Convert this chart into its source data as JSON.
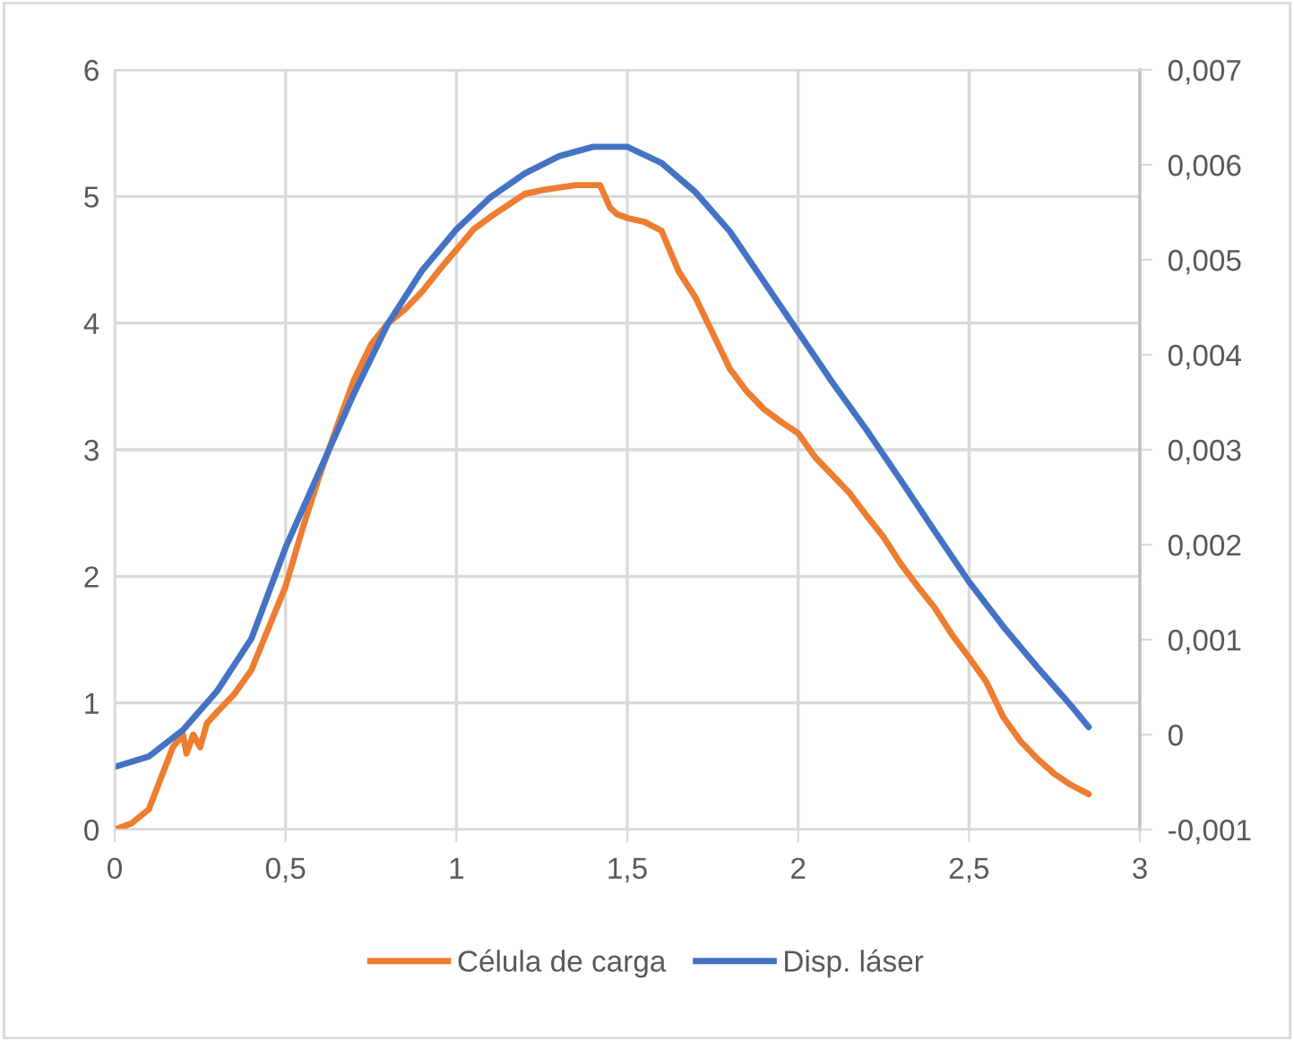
{
  "chart_data": {
    "type": "line",
    "xlim": [
      0,
      3
    ],
    "xticks": [
      {
        "value": 0,
        "label": "0"
      },
      {
        "value": 0.5,
        "label": "0,5"
      },
      {
        "value": 1,
        "label": "1"
      },
      {
        "value": 1.5,
        "label": "1,5"
      },
      {
        "value": 2,
        "label": "2"
      },
      {
        "value": 2.5,
        "label": "2,5"
      },
      {
        "value": 3,
        "label": "3"
      }
    ],
    "ylim": [
      0,
      6
    ],
    "yticks": [
      0,
      1,
      2,
      3,
      4,
      5,
      6
    ],
    "y2lim": [
      -0.001,
      0.007
    ],
    "y2ticks": [
      {
        "value": -0.001,
        "label": "-0,001"
      },
      {
        "value": 0,
        "label": "0"
      },
      {
        "value": 0.001,
        "label": "0,001"
      },
      {
        "value": 0.002,
        "label": "0,002"
      },
      {
        "value": 0.003,
        "label": "0,003"
      },
      {
        "value": 0.004,
        "label": "0,004"
      },
      {
        "value": 0.005,
        "label": "0,005"
      },
      {
        "value": 0.006,
        "label": "0,006"
      },
      {
        "value": 0.007,
        "label": "0,007"
      }
    ],
    "grid": true,
    "legend": "bottom",
    "marker": "none",
    "line_style": "solid",
    "series": [
      {
        "name": "Célula de carga",
        "color": "#ed7d31",
        "x": [
          0,
          0.05,
          0.1,
          0.13,
          0.17,
          0.2,
          0.21,
          0.23,
          0.25,
          0.27,
          0.3,
          0.35,
          0.4,
          0.45,
          0.5,
          0.55,
          0.6,
          0.65,
          0.7,
          0.75,
          0.8,
          0.85,
          0.9,
          0.95,
          1.0,
          1.05,
          1.1,
          1.15,
          1.2,
          1.25,
          1.3,
          1.35,
          1.42,
          1.45,
          1.47,
          1.5,
          1.55,
          1.6,
          1.65,
          1.7,
          1.75,
          1.8,
          1.85,
          1.9,
          1.95,
          2.0,
          2.05,
          2.1,
          2.15,
          2.2,
          2.25,
          2.3,
          2.35,
          2.4,
          2.45,
          2.5,
          2.55,
          2.6,
          2.65,
          2.7,
          2.75,
          2.8,
          2.85
        ],
        "values": [
          0,
          0.05,
          0.16,
          0.37,
          0.65,
          0.75,
          0.6,
          0.75,
          0.65,
          0.84,
          0.93,
          1.07,
          1.26,
          1.59,
          1.92,
          2.38,
          2.8,
          3.18,
          3.55,
          3.83,
          4.0,
          4.11,
          4.25,
          4.42,
          4.58,
          4.74,
          4.84,
          4.93,
          5.02,
          5.05,
          5.07,
          5.09,
          5.09,
          4.91,
          4.86,
          4.83,
          4.8,
          4.73,
          4.41,
          4.2,
          3.92,
          3.64,
          3.46,
          3.32,
          3.22,
          3.13,
          2.94,
          2.8,
          2.66,
          2.48,
          2.31,
          2.1,
          1.92,
          1.75,
          1.54,
          1.36,
          1.17,
          0.89,
          0.7,
          0.56,
          0.44,
          0.35,
          0.28
        ]
      },
      {
        "name": "Disp. láser",
        "color": "#4472c4",
        "axis": "y2",
        "x": [
          0,
          0.1,
          0.2,
          0.3,
          0.4,
          0.5,
          0.6,
          0.7,
          0.8,
          0.9,
          1.0,
          1.1,
          1.2,
          1.3,
          1.4,
          1.5,
          1.6,
          1.7,
          1.8,
          1.9,
          2.0,
          2.1,
          2.2,
          2.3,
          2.4,
          2.5,
          2.6,
          2.7,
          2.8,
          2.85
        ],
        "values": [
          -0.00034,
          -0.00023,
          5e-05,
          0.00046,
          0.00101,
          0.00197,
          0.00278,
          0.00359,
          0.00433,
          0.00489,
          0.00532,
          0.00566,
          0.00591,
          0.00609,
          0.00619,
          0.00619,
          0.00602,
          0.00571,
          0.0053,
          0.00477,
          0.00424,
          0.00371,
          0.00321,
          0.00268,
          0.00214,
          0.00161,
          0.00114,
          0.00071,
          0.0003,
          8e-05
        ]
      }
    ]
  }
}
